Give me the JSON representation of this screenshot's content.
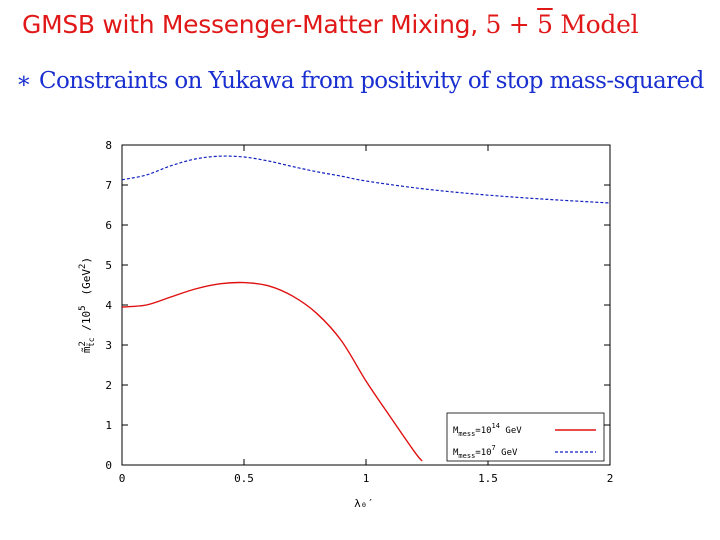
{
  "slide": {
    "title_text": "GMSB with Messenger-Matter Mixing,",
    "title_math_5": "5 + ",
    "title_math_5bar": "5",
    "title_math_model": " Model",
    "bullet_symbol": "∗",
    "bullet_text": "Constraints on Yukawa from positivity of stop mass-squared"
  },
  "colors": {
    "title": "#e01818",
    "bullet": "#1a2fd0",
    "series_red": "#e01010",
    "series_blue": "#1020c0"
  },
  "chart_data": {
    "type": "line",
    "title": "",
    "xlabel": "λ₀′",
    "ylabel_main": "m̃",
    "ylabel_sup": "2",
    "ylabel_sub": "t̃c",
    "ylabel_mid": " /10",
    "ylabel_sup2": "5",
    "ylabel_units_open": "(GeV",
    "ylabel_units_sup": "2",
    "ylabel_units_close": ")",
    "xlim": [
      0,
      2
    ],
    "ylim": [
      0,
      8
    ],
    "xticks": [
      0,
      0.5,
      1,
      1.5,
      2
    ],
    "xtick_labels": [
      "0",
      "0.5",
      "1",
      "1.5",
      "2"
    ],
    "yticks": [
      0,
      1,
      2,
      3,
      4,
      5,
      6,
      7,
      8
    ],
    "ytick_labels": [
      "0",
      "1",
      "2",
      "3",
      "4",
      "5",
      "6",
      "7",
      "8"
    ],
    "legend_position": "bottom-right",
    "series": [
      {
        "name": "M_mess = 10^14 GeV",
        "legend_main": "M",
        "legend_sub": "mess",
        "legend_eq": "=10",
        "legend_sup": "14",
        "legend_unit": " GeV",
        "style": "solid",
        "x": [
          0,
          0.1,
          0.2,
          0.3,
          0.4,
          0.5,
          0.6,
          0.7,
          0.8,
          0.9,
          1.0,
          1.1,
          1.2,
          1.23
        ],
        "y": [
          3.95,
          4.0,
          4.2,
          4.4,
          4.53,
          4.56,
          4.48,
          4.22,
          3.78,
          3.1,
          2.1,
          1.2,
          0.32,
          0.1
        ]
      },
      {
        "name": "M_mess = 10^7 GeV",
        "legend_main": "M",
        "legend_sub": "mess",
        "legend_eq": "=10",
        "legend_sup": "7",
        "legend_unit": " GeV",
        "style": "dashed",
        "x": [
          0,
          0.1,
          0.2,
          0.3,
          0.4,
          0.5,
          0.6,
          0.7,
          0.8,
          0.9,
          1.0,
          1.2,
          1.4,
          1.6,
          1.8,
          2.0
        ],
        "y": [
          7.13,
          7.25,
          7.48,
          7.65,
          7.72,
          7.7,
          7.6,
          7.46,
          7.33,
          7.22,
          7.1,
          6.93,
          6.8,
          6.7,
          6.62,
          6.55
        ]
      }
    ]
  }
}
